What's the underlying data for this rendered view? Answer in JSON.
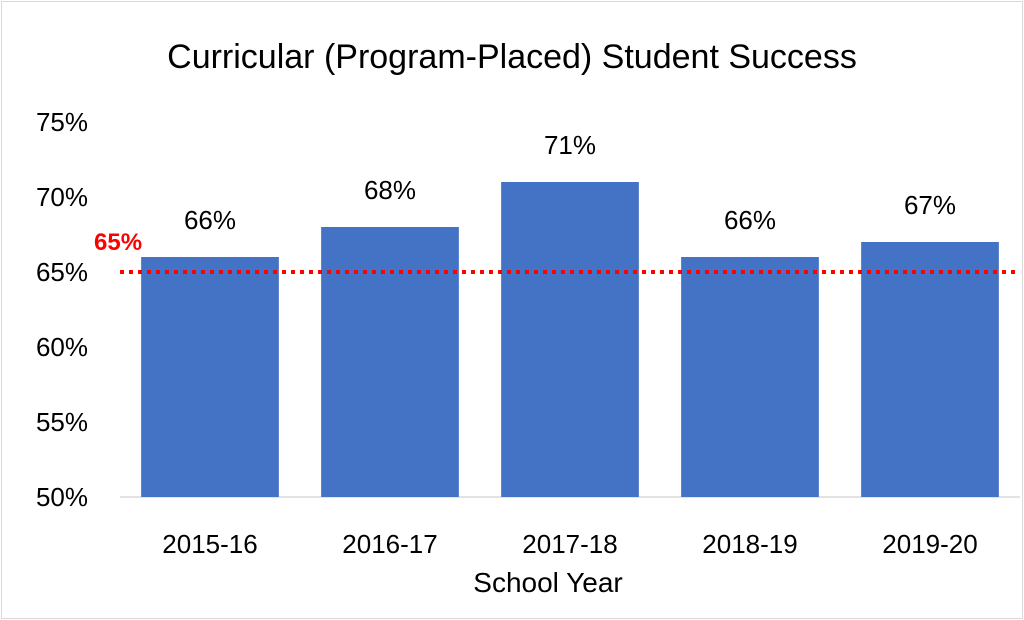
{
  "chart_data": {
    "type": "bar",
    "title": "Curricular (Program-Placed) Student Success",
    "xlabel": "School Year",
    "ylabel": "",
    "categories": [
      "2015-16",
      "2016-17",
      "2017-18",
      "2018-19",
      "2019-20"
    ],
    "values": [
      66,
      68,
      71,
      66,
      67
    ],
    "data_labels": [
      "66%",
      "68%",
      "71%",
      "66%",
      "67%"
    ],
    "ylim": [
      50,
      75
    ],
    "yticks": [
      50,
      55,
      60,
      65,
      70,
      75
    ],
    "ytick_labels": [
      "50%",
      "55%",
      "60%",
      "65%",
      "70%",
      "75%"
    ],
    "bar_color": "#4472c4",
    "reference_line": {
      "value": 65,
      "label": "65%",
      "color": "#ff0000",
      "style": "dotted"
    },
    "grid": false,
    "legend": "none"
  }
}
